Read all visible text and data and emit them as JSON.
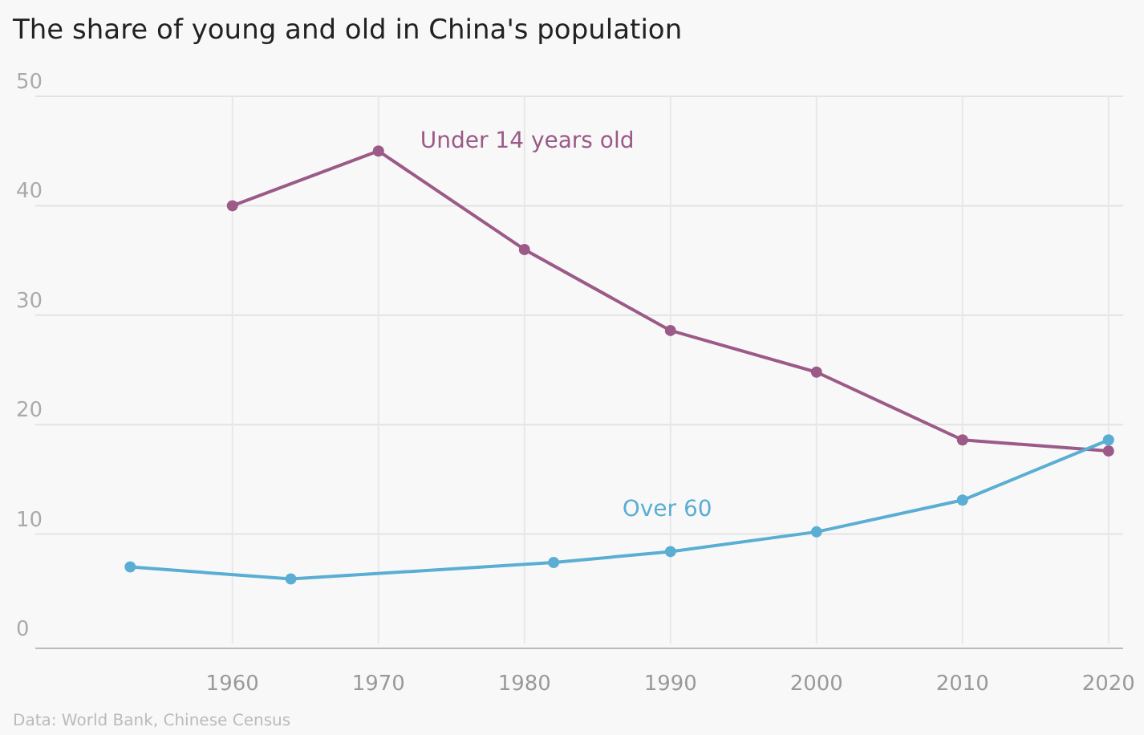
{
  "chart_data": {
    "type": "line",
    "title": "The share of young and old in China's population",
    "annotations": [
      "Data: World Bank, Chinese Census"
    ],
    "xlim": [
      1946.5,
      2021
    ],
    "xticks": [
      1960,
      1970,
      1980,
      1990,
      2000,
      2010,
      2020
    ],
    "ylim": [
      0,
      50
    ],
    "yticks": [
      0,
      10,
      20,
      30,
      40,
      50
    ],
    "grid": true,
    "marker": "circle",
    "line_style": "solid",
    "series": [
      {
        "name": "Under 14 years old",
        "color": "#9b5a87",
        "x": [
          1960,
          1970,
          1980,
          1990,
          2000,
          2010,
          2020
        ],
        "values": [
          40,
          45,
          36,
          28.6,
          24.8,
          18.6,
          17.6
        ]
      },
      {
        "name": "Over 60",
        "color": "#5aaed3",
        "x": [
          1953,
          1964,
          1982,
          1990,
          2000,
          2010,
          2020
        ],
        "values": [
          7.0,
          5.9,
          7.4,
          8.4,
          10.2,
          13.1,
          18.6
        ]
      }
    ]
  }
}
